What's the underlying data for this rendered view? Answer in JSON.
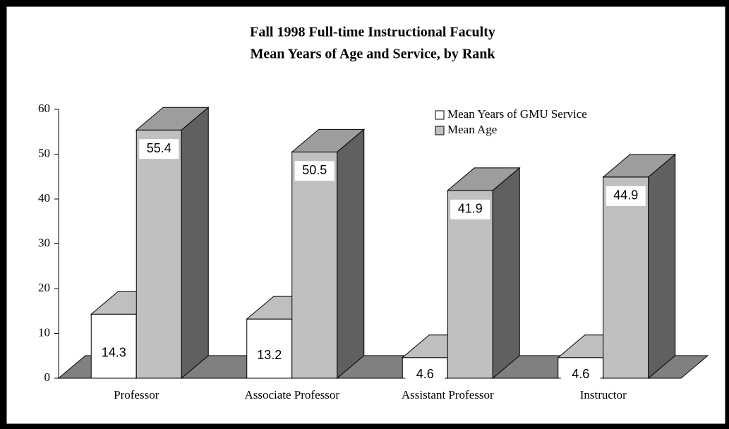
{
  "chart_data": {
    "type": "bar3d",
    "title": "Fall 1998 Full-time Instructional Faculty",
    "subtitle": "Mean Years of Age and Service, by Rank",
    "categories": [
      "Professor",
      "Associate Professor",
      "Assistant Professor",
      "Instructor"
    ],
    "series": [
      {
        "name": "Mean Years of GMU Service",
        "color": "#ffffff",
        "values": [
          14.3,
          13.2,
          4.6,
          4.6
        ]
      },
      {
        "name": "Mean Age",
        "color": "#c0c0c0",
        "values": [
          55.4,
          50.5,
          41.9,
          44.9
        ]
      }
    ],
    "ylim": [
      0,
      60
    ],
    "yticks": [
      0,
      10,
      20,
      30,
      40,
      50,
      60
    ],
    "legend": "top-right"
  }
}
